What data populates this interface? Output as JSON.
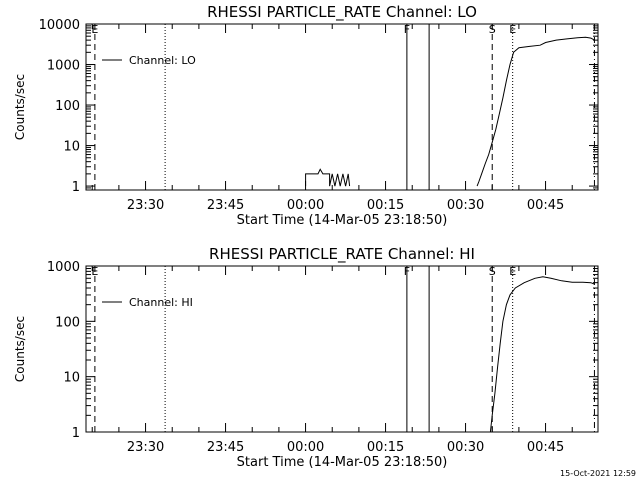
{
  "timestamp": "15-Oct-2021 12:59",
  "chart_data": [
    {
      "type": "line",
      "title": "RHESSI PARTICLE_RATE Channel: LO",
      "xlabel": "Start Time (14-Mar-05 23:18:50)",
      "ylabel": "Counts/sec",
      "yscale": "log",
      "ylim": [
        0.8,
        10000
      ],
      "xlim": [
        "23:18:50",
        "00:54:50"
      ],
      "x_ticks": [
        "23:30",
        "23:45",
        "00:00",
        "00:15",
        "00:30",
        "00:45"
      ],
      "y_ticks": [
        "1",
        "10",
        "100",
        "1000",
        "10000"
      ],
      "legend": {
        "entries": [
          "Channel: LO"
        ],
        "position": "top-left"
      },
      "markers": [
        {
          "label": "E",
          "time": "23:20:30",
          "style": "dashed"
        },
        {
          "label": "",
          "time": "23:33:40",
          "style": "dotted"
        },
        {
          "label": "F",
          "time": "00:19:00",
          "style": "solid"
        },
        {
          "label": "",
          "time": "00:23:10",
          "style": "solid"
        },
        {
          "label": "S",
          "time": "00:35:00",
          "style": "dashed"
        },
        {
          "label": "E",
          "time": "00:38:50",
          "style": "dotted"
        },
        {
          "label": "",
          "time": "00:54:10",
          "style": "dashdot"
        }
      ],
      "series": [
        {
          "name": "Channel: LO",
          "segments": [
            [
              [
                "00:00:00",
                1
              ],
              [
                "00:00:00",
                2
              ],
              [
                "00:02:20",
                2
              ],
              [
                "00:02:45",
                2.6
              ],
              [
                "00:03:15",
                2
              ],
              [
                "00:04:30",
                2
              ],
              [
                "00:04:30",
                1
              ],
              [
                "00:05:00",
                2
              ],
              [
                "00:05:30",
                1
              ],
              [
                "00:06:00",
                2
              ],
              [
                "00:06:30",
                1
              ],
              [
                "00:07:00",
                2
              ],
              [
                "00:07:30",
                1
              ],
              [
                "00:08:00",
                2
              ],
              [
                "00:08:15",
                1
              ]
            ],
            [
              [
                "00:32:10",
                1
              ],
              [
                "00:32:30",
                1.3
              ],
              [
                "00:33:00",
                2
              ],
              [
                "00:33:40",
                3.5
              ],
              [
                "00:34:20",
                6
              ],
              [
                "00:35:00",
                12
              ],
              [
                "00:35:40",
                25
              ],
              [
                "00:36:20",
                60
              ],
              [
                "00:37:00",
                150
              ],
              [
                "00:37:40",
                400
              ],
              [
                "00:38:20",
                1000
              ],
              [
                "00:39:00",
                2000
              ],
              [
                "00:40:00",
                2600
              ],
              [
                "00:42:00",
                2800
              ],
              [
                "00:44:00",
                3000
              ],
              [
                "00:45:00",
                3500
              ],
              [
                "00:47:00",
                4000
              ],
              [
                "00:49:00",
                4300
              ],
              [
                "00:51:00",
                4600
              ],
              [
                "00:52:30",
                4700
              ],
              [
                "00:53:30",
                4500
              ],
              [
                "00:54:10",
                4000
              ]
            ]
          ]
        }
      ]
    },
    {
      "type": "line",
      "title": "RHESSI PARTICLE_RATE Channel: HI",
      "xlabel": "Start Time (14-Mar-05 23:18:50)",
      "ylabel": "Counts/sec",
      "yscale": "log",
      "ylim": [
        1,
        1000
      ],
      "xlim": [
        "23:18:50",
        "00:54:50"
      ],
      "x_ticks": [
        "23:30",
        "23:45",
        "00:00",
        "00:15",
        "00:30",
        "00:45"
      ],
      "y_ticks": [
        "1",
        "10",
        "100",
        "1000"
      ],
      "legend": {
        "entries": [
          "Channel: HI"
        ],
        "position": "top-left"
      },
      "markers": [
        {
          "label": "E",
          "time": "23:20:30",
          "style": "dashed"
        },
        {
          "label": "",
          "time": "23:33:40",
          "style": "dotted"
        },
        {
          "label": "F",
          "time": "00:19:00",
          "style": "solid"
        },
        {
          "label": "",
          "time": "00:23:10",
          "style": "solid"
        },
        {
          "label": "S",
          "time": "00:35:00",
          "style": "dashed"
        },
        {
          "label": "E",
          "time": "00:38:50",
          "style": "dotted"
        },
        {
          "label": "",
          "time": "00:54:10",
          "style": "dashdot"
        }
      ],
      "series": [
        {
          "name": "Channel: HI",
          "segments": [
            [
              [
                "00:34:40",
                1
              ],
              [
                "00:35:00",
                2
              ],
              [
                "00:35:30",
                5
              ],
              [
                "00:36:00",
                15
              ],
              [
                "00:36:30",
                40
              ],
              [
                "00:37:00",
                100
              ],
              [
                "00:37:40",
                200
              ],
              [
                "00:38:20",
                300
              ],
              [
                "00:39:20",
                400
              ],
              [
                "00:41:00",
                500
              ],
              [
                "00:43:00",
                600
              ],
              [
                "00:44:30",
                640
              ],
              [
                "00:46:00",
                600
              ],
              [
                "00:48:00",
                540
              ],
              [
                "00:50:00",
                510
              ],
              [
                "00:52:00",
                510
              ],
              [
                "00:53:30",
                500
              ],
              [
                "00:54:10",
                470
              ]
            ]
          ]
        }
      ]
    }
  ]
}
